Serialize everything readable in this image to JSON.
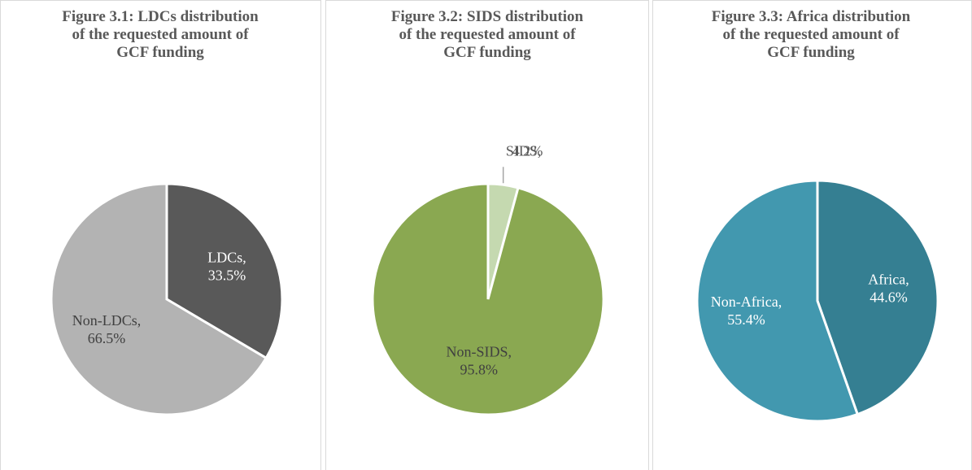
{
  "chart_data": [
    {
      "type": "pie",
      "title": "Figure 3.1:  LDCs distribution of the requested amount of GCF funding",
      "categories": [
        "LDCs,",
        "Non-LDCs,"
      ],
      "values": [
        33.5,
        66.5
      ],
      "value_labels": [
        "33.5%",
        "66.5%"
      ],
      "colors": [
        "#595959",
        "#b3b3b3"
      ],
      "label_colors": [
        "#ffffff",
        "#404040"
      ]
    },
    {
      "type": "pie",
      "title": "Figure 3.2:  SIDS distribution of the requested amount of GCF funding",
      "categories": [
        "SIDS,",
        "Non-SIDS,"
      ],
      "values": [
        4.2,
        95.8
      ],
      "value_labels": [
        "4.2%",
        "95.8%"
      ],
      "colors": [
        "#c5d9b0",
        "#8aa851"
      ],
      "label_colors": [
        "#595959",
        "#404040"
      ]
    },
    {
      "type": "pie",
      "title": "Figure 3.3:  Africa distribution of the requested amount of GCF funding",
      "categories": [
        "Africa,",
        "Non-Africa,"
      ],
      "values": [
        44.6,
        55.4
      ],
      "value_labels": [
        "44.6%",
        "55.4%"
      ],
      "colors": [
        "#357f92",
        "#4298af"
      ],
      "label_colors": [
        "#ffffff",
        "#ffffff"
      ]
    }
  ]
}
